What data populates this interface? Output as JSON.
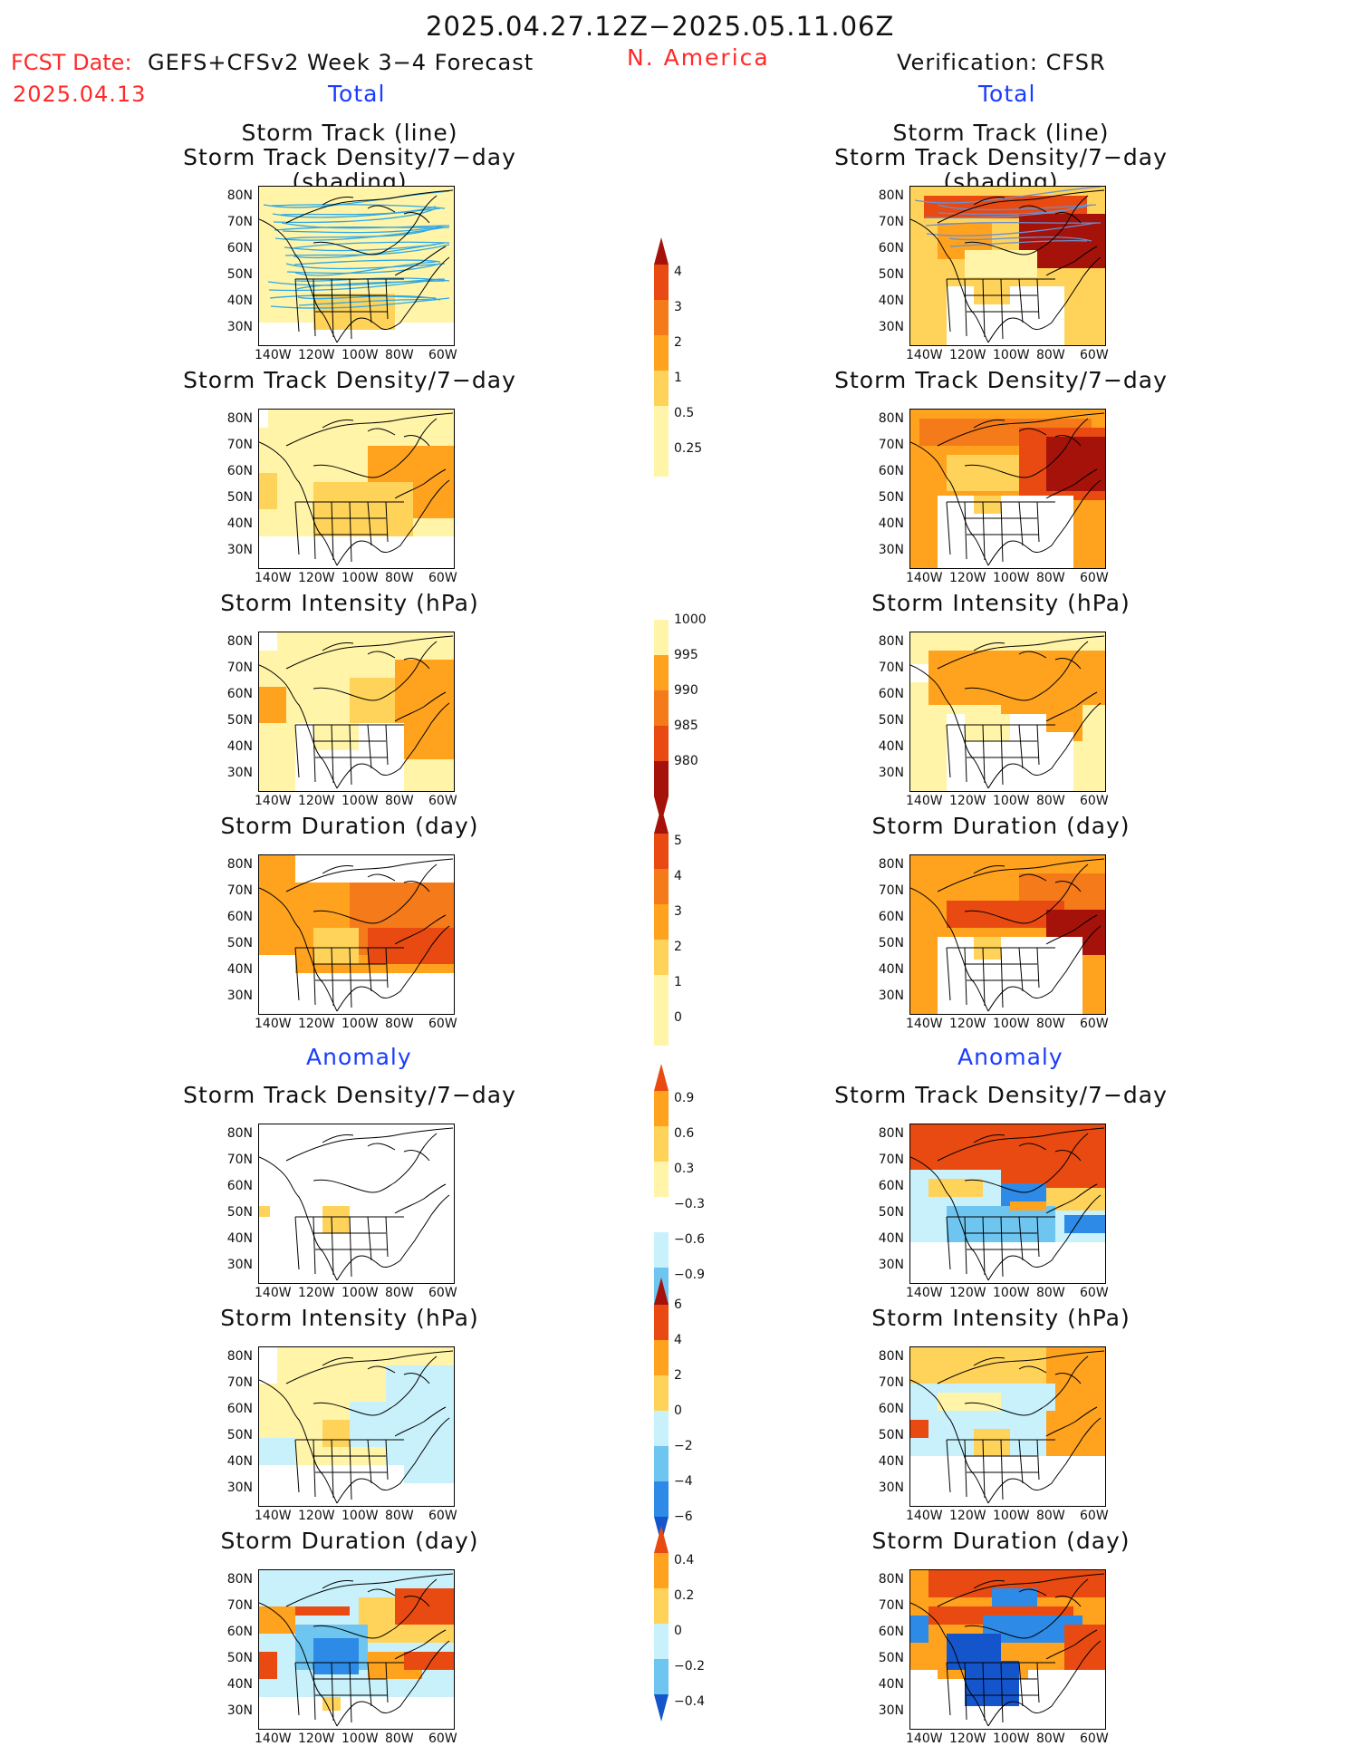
{
  "header": {
    "period": "2025.04.27.12Z−2025.05.11.06Z",
    "fcst_label": "FCST Date:",
    "fcst_model": "GEFS+CFSv2 Week 3−4 Forecast",
    "fcst_date": "2025.04.13",
    "region": "N. America",
    "verification": "Verification: CFSR",
    "total_left": "Total",
    "total_right": "Total",
    "anomaly_left": "Anomaly",
    "anomaly_right": "Anomaly"
  },
  "titles": {
    "track_line": "Storm Track (line)",
    "track_shading": "Storm Track Density/7−day (shading)",
    "density": "Storm Track Density/7−day",
    "intensity": "Storm Intensity (hPa)",
    "duration": "Storm Duration (day)"
  },
  "axes": {
    "lat": [
      "80N",
      "70N",
      "60N",
      "50N",
      "40N",
      "30N"
    ],
    "lon": [
      "140W",
      "120W",
      "100W",
      "80W",
      "60W"
    ]
  },
  "colorbars": {
    "density_total": [
      "4",
      "3",
      "2",
      "1",
      "0.5",
      "0.25"
    ],
    "intensity_total": [
      "1000",
      "995",
      "990",
      "985",
      "980"
    ],
    "duration_total": [
      "5",
      "4",
      "3",
      "2",
      "1",
      "0"
    ],
    "density_anom": [
      "0.9",
      "0.6",
      "0.3",
      "−0.3",
      "−0.6",
      "−0.9"
    ],
    "intensity_anom": [
      "6",
      "4",
      "2",
      "0",
      "−2",
      "−4",
      "−6"
    ],
    "duration_anom": [
      "0.4",
      "0.2",
      "0",
      "−0.2",
      "−0.4"
    ]
  },
  "colors": {
    "pale_yellow": "#fff4a8",
    "light_orange": "#ffd35a",
    "orange": "#ffa21e",
    "dark_orange": "#f47a1a",
    "red_orange": "#e84a12",
    "dark_red": "#a5120a",
    "light_blue": "#c8f1fb",
    "mid_blue": "#6ec5f0",
    "blue": "#2d8ae6",
    "dark_blue": "#1555cc",
    "track_line": "#2ea8e6"
  }
}
